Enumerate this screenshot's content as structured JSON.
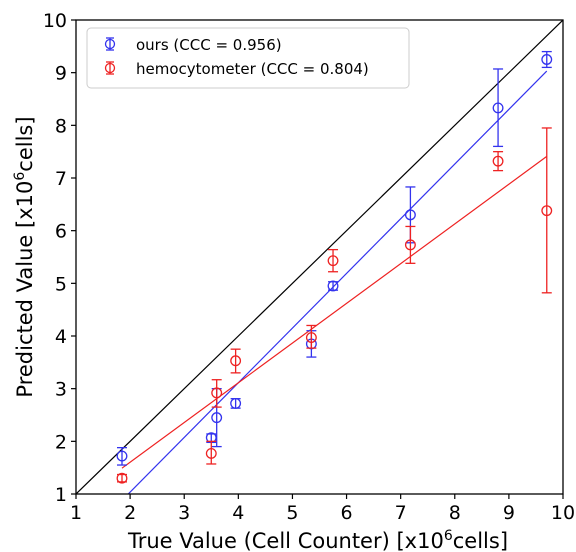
{
  "chart_data": {
    "type": "scatter",
    "xlabel_main": "True Value (Cell Counter) [x10",
    "xlabel_sup": "6",
    "xlabel_tail": "cells]",
    "ylabel_main": "Predicted Value [x10",
    "ylabel_sup": "6",
    "ylabel_tail": "cells]",
    "xlim": [
      1,
      10
    ],
    "ylim": [
      1,
      10
    ],
    "xticks": [
      "1",
      "2",
      "3",
      "4",
      "5",
      "6",
      "7",
      "8",
      "9",
      "10"
    ],
    "yticks": [
      "1",
      "2",
      "3",
      "4",
      "5",
      "6",
      "7",
      "8",
      "9",
      "10"
    ],
    "grid": false,
    "legend_position": "top-left",
    "identity_line": true,
    "series": [
      {
        "name": "ours (CCC = 0.956)",
        "color": "#3333ee",
        "points": [
          {
            "x": 1.85,
            "y": 1.72,
            "lo": 1.55,
            "hi": 1.88
          },
          {
            "x": 3.5,
            "y": 2.07,
            "lo": 1.98,
            "hi": 2.14
          },
          {
            "x": 3.6,
            "y": 2.45,
            "lo": 1.9,
            "hi": 3.0
          },
          {
            "x": 3.95,
            "y": 2.72,
            "lo": 2.63,
            "hi": 2.81
          },
          {
            "x": 5.35,
            "y": 3.85,
            "lo": 3.6,
            "hi": 4.1
          },
          {
            "x": 5.75,
            "y": 4.95,
            "lo": 4.87,
            "hi": 5.03
          },
          {
            "x": 7.18,
            "y": 6.3,
            "lo": 5.77,
            "hi": 6.83
          },
          {
            "x": 8.8,
            "y": 8.33,
            "lo": 7.6,
            "hi": 9.07
          },
          {
            "x": 9.7,
            "y": 9.25,
            "lo": 9.1,
            "hi": 9.4
          }
        ],
        "fit": [
          [
            1.85,
            0.88
          ],
          [
            9.7,
            9.03
          ]
        ]
      },
      {
        "name": "hemocytometer (CCC = 0.804)",
        "color": "#ee2222",
        "points": [
          {
            "x": 1.85,
            "y": 1.3,
            "lo": 1.23,
            "hi": 1.37
          },
          {
            "x": 3.5,
            "y": 1.77,
            "lo": 1.57,
            "hi": 2.0
          },
          {
            "x": 3.6,
            "y": 2.92,
            "lo": 2.65,
            "hi": 3.17
          },
          {
            "x": 3.95,
            "y": 3.53,
            "lo": 3.3,
            "hi": 3.75
          },
          {
            "x": 5.35,
            "y": 3.97,
            "lo": 3.77,
            "hi": 4.2
          },
          {
            "x": 5.75,
            "y": 5.43,
            "lo": 5.22,
            "hi": 5.64
          },
          {
            "x": 7.18,
            "y": 5.73,
            "lo": 5.38,
            "hi": 6.08
          },
          {
            "x": 8.8,
            "y": 7.32,
            "lo": 7.14,
            "hi": 7.5
          },
          {
            "x": 9.7,
            "y": 6.38,
            "lo": 4.82,
            "hi": 7.95
          }
        ],
        "fit": [
          [
            1.85,
            1.49
          ],
          [
            9.7,
            7.41
          ]
        ]
      }
    ]
  }
}
